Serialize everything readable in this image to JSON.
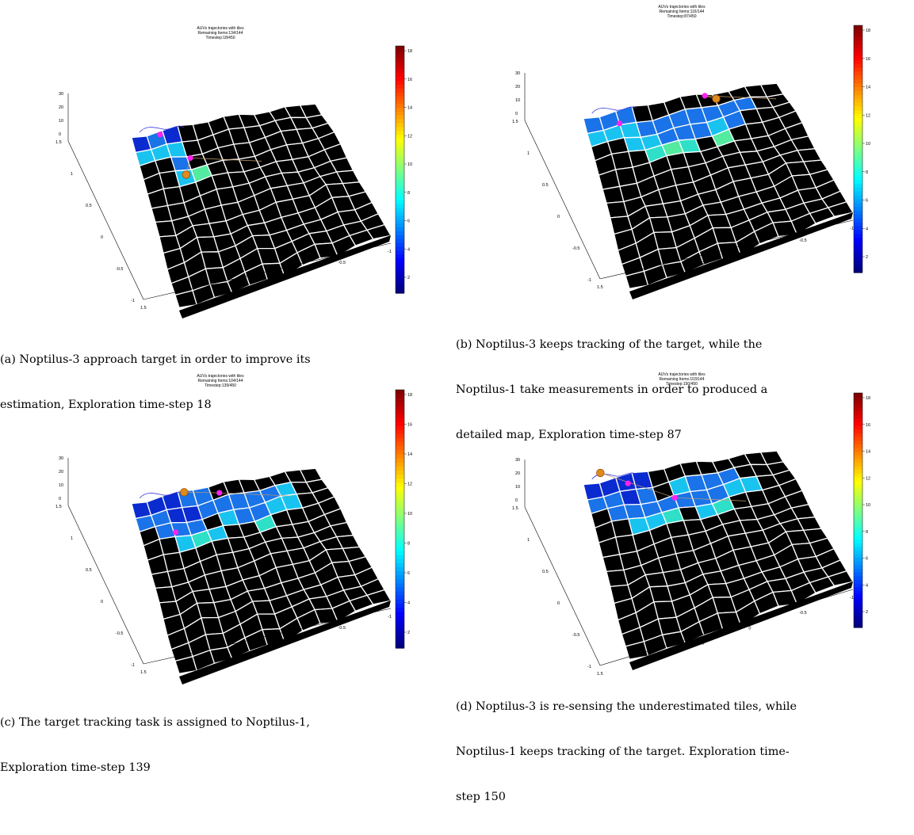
{
  "colorbar_ticks": [
    "18",
    "16",
    "14",
    "12",
    "10",
    "8",
    "6",
    "4",
    "2"
  ],
  "colors": {
    "tile_dark": "#0a2bcf",
    "tile_mid": "#1a73e8",
    "tile_light": "#19c3f0",
    "tile_cyan": "#2fe0c8",
    "tile_green": "#52eba0",
    "agent": "#ff22ee",
    "target": "#e08a1a",
    "trajectory": "#3a3ae0"
  },
  "panels": [
    {
      "id": "a",
      "title": [
        "AUVs trajectories with tiles",
        "Remaining Items:134/144",
        "Timestep:18/450"
      ],
      "caption": [
        "(a) Noptilus-3 approach target in order to improve its",
        "estimation, Exploration time-step 18"
      ],
      "z_ticks": [
        "30",
        "20",
        "10",
        "0"
      ],
      "y_ticks": [
        "1.5",
        "1",
        "0.5",
        "0",
        "-0.5",
        "-1"
      ],
      "x_ticks": [
        "1.5",
        "1",
        "0.5",
        "0",
        "-0.5",
        "-1"
      ],
      "tiles": [
        [
          0,
          0,
          "tile_dark"
        ],
        [
          1,
          0,
          "tile_mid"
        ],
        [
          2,
          0,
          "tile_dark"
        ],
        [
          0,
          1,
          "tile_light"
        ],
        [
          1,
          1,
          "tile_light"
        ],
        [
          2,
          1,
          "tile_light"
        ],
        [
          2,
          2,
          "tile_mid"
        ],
        [
          2,
          3,
          "tile_light"
        ],
        [
          3,
          3,
          "tile_green"
        ]
      ],
      "agents": [
        [
          1.8,
          0.2
        ],
        [
          3.2,
          2.1
        ]
      ],
      "targets": [
        [
          2.6,
          3.3
        ]
      ]
    },
    {
      "id": "b",
      "title": [
        "AUVs trajectories with tiles",
        "Remaining Items:116/144",
        "Timestep:87/450"
      ],
      "caption": [
        "(b) Noptilus-3 keeps tracking of the target, while the",
        "Noptilus-1 take measurements in order to produced a",
        "detailed map, Exploration time-step 87"
      ],
      "z_ticks": [
        "30",
        "20",
        "10",
        "0"
      ],
      "y_ticks": [
        "1.5",
        "1",
        "0.5",
        "0",
        "-0.5",
        "-1"
      ],
      "x_ticks": [
        "1.5",
        "1",
        "0.5",
        "0",
        "-0.5",
        "-1"
      ],
      "tiles": [
        [
          0,
          0,
          "tile_mid"
        ],
        [
          1,
          0,
          "tile_mid"
        ],
        [
          2,
          0,
          "tile_mid"
        ],
        [
          0,
          1,
          "tile_light"
        ],
        [
          1,
          1,
          "tile_light"
        ],
        [
          2,
          1,
          "tile_light"
        ],
        [
          3,
          1,
          "tile_mid"
        ],
        [
          4,
          1,
          "tile_mid"
        ],
        [
          5,
          1,
          "tile_mid"
        ],
        [
          6,
          1,
          "tile_mid"
        ],
        [
          7,
          1,
          "tile_mid"
        ],
        [
          8,
          1,
          "tile_mid"
        ],
        [
          2,
          2,
          "tile_light"
        ],
        [
          3,
          2,
          "tile_light"
        ],
        [
          4,
          2,
          "tile_mid"
        ],
        [
          5,
          2,
          "tile_mid"
        ],
        [
          6,
          2,
          "tile_mid"
        ],
        [
          7,
          2,
          "tile_light"
        ],
        [
          8,
          2,
          "tile_mid"
        ],
        [
          9,
          1,
          "tile_mid"
        ],
        [
          3,
          3,
          "tile_cyan"
        ],
        [
          4,
          3,
          "tile_green"
        ],
        [
          5,
          3,
          "tile_cyan"
        ],
        [
          7,
          3,
          "tile_green"
        ]
      ],
      "agents": [
        [
          2.0,
          0.9
        ],
        [
          7.5,
          0.1
        ]
      ],
      "targets": [
        [
          8.1,
          0.4
        ]
      ]
    },
    {
      "id": "c",
      "title": [
        "AUVs trajectories with tiles",
        "Remaining Items:104/144",
        "Timestep:139/450"
      ],
      "caption": [
        "(c) The target tracking task is assigned to Noptilus-1,",
        "Exploration time-step 139"
      ],
      "z_ticks": [
        "30",
        "20",
        "10",
        "0"
      ],
      "y_ticks": [
        "1.5",
        "1",
        "0.5",
        "0",
        "-0.5",
        "-1"
      ],
      "x_ticks": [
        "1.5",
        "1",
        "0.5",
        "0",
        "-0.5",
        "-1"
      ],
      "tiles": [
        [
          0,
          0,
          "tile_dark"
        ],
        [
          1,
          0,
          "tile_dark"
        ],
        [
          2,
          0,
          "tile_dark"
        ],
        [
          3,
          0,
          "tile_mid"
        ],
        [
          4,
          0,
          "tile_mid"
        ],
        [
          0,
          1,
          "tile_mid"
        ],
        [
          1,
          1,
          "tile_mid"
        ],
        [
          2,
          1,
          "tile_dark"
        ],
        [
          3,
          1,
          "tile_dark"
        ],
        [
          4,
          1,
          "tile_mid"
        ],
        [
          5,
          1,
          "tile_mid"
        ],
        [
          6,
          1,
          "tile_mid"
        ],
        [
          7,
          1,
          "tile_mid"
        ],
        [
          8,
          1,
          "tile_mid"
        ],
        [
          9,
          1,
          "tile_light"
        ],
        [
          1,
          2,
          "tile_mid"
        ],
        [
          2,
          2,
          "tile_mid"
        ],
        [
          3,
          2,
          "tile_mid"
        ],
        [
          5,
          2,
          "tile_light"
        ],
        [
          6,
          2,
          "tile_mid"
        ],
        [
          7,
          2,
          "tile_mid"
        ],
        [
          8,
          2,
          "tile_light"
        ],
        [
          9,
          2,
          "tile_light"
        ],
        [
          2,
          3,
          "tile_light"
        ],
        [
          3,
          3,
          "tile_cyan"
        ],
        [
          4,
          3,
          "tile_light"
        ],
        [
          7,
          3,
          "tile_cyan"
        ]
      ],
      "agents": [
        [
          2.1,
          2.7
        ],
        [
          5.5,
          0.7
        ]
      ],
      "targets": [
        [
          3.4,
          0.1
        ]
      ]
    },
    {
      "id": "d",
      "title": [
        "AUVs trajectories with tiles",
        "Remaining Items:103/144",
        "Timestep:150/450"
      ],
      "caption": [
        "(d) Noptilus-3 is re-sensing the underestimated tiles, while",
        "Noptilus-1 keeps tracking of the target. Exploration time-",
        "step 150"
      ],
      "z_ticks": [
        "30",
        "20",
        "10",
        "0"
      ],
      "y_ticks": [
        "1.5",
        "1",
        "0.5",
        "0",
        "-0.5",
        "-1"
      ],
      "x_ticks": [
        "1.5",
        "1",
        "0.5",
        "0",
        "-0.5",
        "-1"
      ],
      "tiles": [
        [
          0,
          0,
          "tile_dark"
        ],
        [
          1,
          0,
          "tile_dark"
        ],
        [
          2,
          0,
          "tile_dark"
        ],
        [
          3,
          0,
          "tile_dark"
        ],
        [
          0,
          1,
          "tile_mid"
        ],
        [
          1,
          1,
          "tile_mid"
        ],
        [
          2,
          1,
          "tile_dark"
        ],
        [
          3,
          1,
          "tile_mid"
        ],
        [
          5,
          1,
          "tile_light"
        ],
        [
          6,
          1,
          "tile_mid"
        ],
        [
          7,
          1,
          "tile_mid"
        ],
        [
          8,
          1,
          "tile_mid"
        ],
        [
          1,
          2,
          "tile_mid"
        ],
        [
          2,
          2,
          "tile_mid"
        ],
        [
          3,
          2,
          "tile_mid"
        ],
        [
          4,
          2,
          "tile_mid"
        ],
        [
          5,
          2,
          "tile_mid"
        ],
        [
          6,
          2,
          "tile_mid"
        ],
        [
          7,
          2,
          "tile_mid"
        ],
        [
          8,
          2,
          "tile_light"
        ],
        [
          9,
          2,
          "tile_light"
        ],
        [
          2,
          3,
          "tile_light"
        ],
        [
          3,
          3,
          "tile_light"
        ],
        [
          4,
          3,
          "tile_cyan"
        ],
        [
          6,
          3,
          "tile_light"
        ],
        [
          7,
          3,
          "tile_cyan"
        ]
      ],
      "agents": [
        [
          2.6,
          0.6
        ],
        [
          5.0,
          2.2
        ]
      ],
      "targets": [
        [
          1.2,
          -0.6
        ]
      ]
    }
  ]
}
